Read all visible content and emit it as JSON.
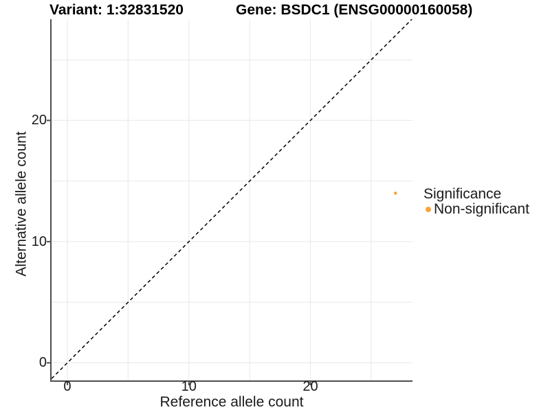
{
  "title": {
    "variant": "Variant: 1:32831520",
    "gene": "Gene: BSDC1 (ENSG00000160058)"
  },
  "axes": {
    "x_label": "Reference allele count",
    "y_label": "Alternative allele count"
  },
  "legend": {
    "title": "Significance",
    "items": [
      {
        "label": "Non-significant",
        "color": "#FAA43A"
      }
    ]
  },
  "chart_data": {
    "type": "scatter",
    "title": "Variant: 1:32831520 — Gene: BSDC1 (ENSG00000160058)",
    "xlabel": "Reference allele count",
    "ylabel": "Alternative allele count",
    "xlim": [
      -1.3,
      28.4
    ],
    "ylim": [
      -1.45,
      28.35
    ],
    "x_ticks": [
      0,
      10,
      20
    ],
    "y_ticks": [
      0,
      10,
      20
    ],
    "gridline_values": {
      "x": [
        0,
        5,
        10,
        15,
        20,
        25
      ],
      "y": [
        0,
        5,
        10,
        15,
        20,
        25
      ]
    },
    "series": [
      {
        "name": "Non-significant",
        "color": "#FAA43A",
        "points": [
          {
            "x": 27,
            "y": 14
          }
        ]
      }
    ],
    "reference_line": {
      "kind": "identity",
      "equation": "y = x",
      "style": "dashed",
      "color": "#000000"
    },
    "legend_position": "right",
    "grid": true,
    "colors": {
      "grid": "#ECECEC",
      "axis_line": "#4D4D4D",
      "tick": "#4D4D4D",
      "text": "#1A1A1A",
      "point": "#FAA43A"
    }
  }
}
